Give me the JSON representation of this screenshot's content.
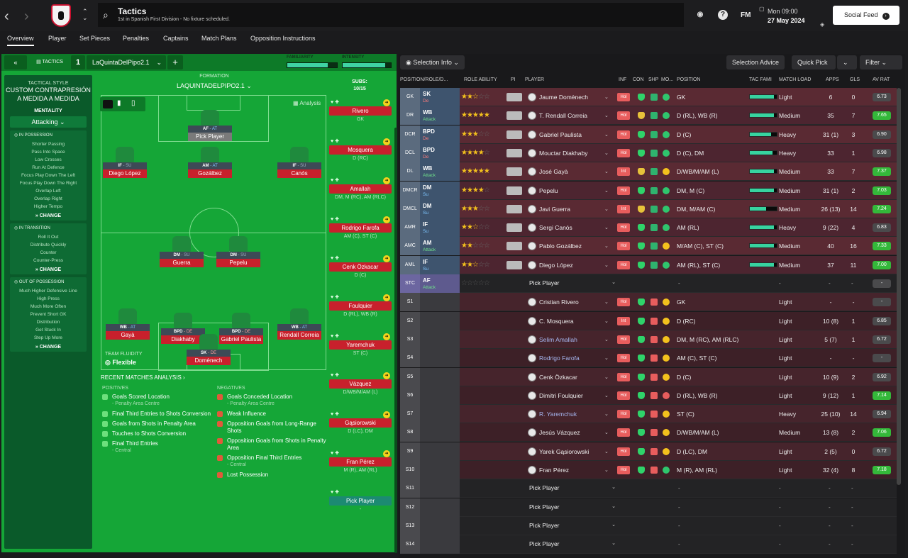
{
  "header": {
    "title": "Tactics",
    "subtitle": "1st in Spanish First Division - No fixture scheduled.",
    "fm_label": "FM",
    "day": "Mon 09:00",
    "date": "27 May 2024",
    "social_feed": "Social Feed"
  },
  "tabs": [
    "Overview",
    "Player",
    "Set Pieces",
    "Penalties",
    "Captains",
    "Match Plans",
    "Opposition Instructions"
  ],
  "left": {
    "tactics_label": "TACTICS",
    "slot": "1",
    "tactic_name": "LaQuintaDelPipo2.1",
    "familiarity": "FAMILIARITY",
    "intensity": "INTENSITY",
    "familiarity_pct": 0.82,
    "intensity_pct": 0.88,
    "style_head": "TACTICAL STYLE",
    "style": "CUSTOM CONTRAPRESIÓN A MEDIDA A MEDIDA",
    "mentality_head": "MENTALITY",
    "mentality": "Attacking",
    "in_possession": "IN POSSESSION",
    "in_possession_items": [
      "Shorter Passing",
      "Pass Into Space",
      "Low Crosses",
      "Run At Defence",
      "Focus Play Down The Left",
      "Focus Play Down The Right",
      "Overlap Left",
      "Overlap Right",
      "Higher Tempo"
    ],
    "in_transition": "IN TRANSITION",
    "in_transition_items": [
      "Roll It Out",
      "Distribute Quickly",
      "Counter",
      "Counter-Press"
    ],
    "out_possession": "OUT OF POSSESSION",
    "out_possession_items": [
      "Much Higher Defensive Line",
      "High Press",
      "Much More Often",
      "Prevent Short GK",
      "Distribution",
      "Get Stuck In",
      "Step Up More"
    ],
    "change": "CHANGE",
    "formation_head": "FORMATION",
    "formation": "LAQUINTADELPIPO2.1",
    "subs_head": "SUBS:",
    "subs_count": "10/15",
    "analysis": "Analysis",
    "team_fluidity_head": "TEAM FLUIDITY",
    "team_fluidity": "Flexible",
    "recent": "RECENT MATCHES ANALYSIS",
    "positives": "POSITIVES",
    "negatives": "NEGATIVES",
    "positive_items": [
      {
        "t": "Goals Scored Location",
        "s": "- Penalty Area Centre"
      },
      {
        "t": "Final Third Entries to Shots Conversion",
        "s": ""
      },
      {
        "t": "Goals from Shots in Penalty Area",
        "s": ""
      },
      {
        "t": "Touches to Shots Conversion",
        "s": ""
      },
      {
        "t": "Final Third Entries",
        "s": "- Central"
      }
    ],
    "negative_items": [
      {
        "t": "Goals Conceded Location",
        "s": "- Penalty Area Centre"
      },
      {
        "t": "Weak Influence",
        "s": ""
      },
      {
        "t": "Opposition Goals from Long-Range Shots",
        "s": ""
      },
      {
        "t": "Opposition Goals from Shots in Penalty Area",
        "s": ""
      },
      {
        "t": "Opposition Final Third Entries",
        "s": "- Central"
      },
      {
        "t": "Lost Possession",
        "s": ""
      }
    ],
    "pitch_players": [
      {
        "role": "AF",
        "duty": "AT",
        "name": "Pick Player"
      },
      {
        "role": "IF",
        "duty": "SU",
        "name": "Diego López"
      },
      {
        "role": "AM",
        "duty": "AT",
        "name": "Gozálbez"
      },
      {
        "role": "IF",
        "duty": "SU",
        "name": "Canós"
      },
      {
        "role": "DM",
        "duty": "SU",
        "name": "Guerra"
      },
      {
        "role": "DM",
        "duty": "SU",
        "name": "Pepelu"
      },
      {
        "role": "WB",
        "duty": "AT",
        "name": "Gayà"
      },
      {
        "role": "BPD",
        "duty": "DE",
        "name": "Diakhaby"
      },
      {
        "role": "BPD",
        "duty": "DE",
        "name": "Gabriel Paulista"
      },
      {
        "role": "WB",
        "duty": "AT",
        "name": "Rendall Correia"
      },
      {
        "role": "SK",
        "duty": "DE",
        "name": "Domènech"
      }
    ],
    "subs": [
      {
        "name": "Rivero",
        "pos": "GK"
      },
      {
        "name": "Mosquera",
        "pos": "D (RC)"
      },
      {
        "name": "Amallah",
        "pos": "DM, M (RC), AM (RLC)"
      },
      {
        "name": "Rodrigo Farofa",
        "pos": "AM (C), ST (C)"
      },
      {
        "name": "Cenk Özkacar",
        "pos": "D (C)"
      },
      {
        "name": "Foulquier",
        "pos": "D (RL), WB (R)"
      },
      {
        "name": "Yaremchuk",
        "pos": "ST (C)"
      },
      {
        "name": "Vázquez",
        "pos": "D/WB/M/AM (L)"
      },
      {
        "name": "Gąsiorowski",
        "pos": "D (LC), DM"
      },
      {
        "name": "Fran Pérez",
        "pos": "M (R), AM (RL)"
      },
      {
        "name": "Pick Player",
        "pos": "-"
      }
    ]
  },
  "right": {
    "selection_info": "Selection Info",
    "selection_advice": "Selection Advice",
    "quick_pick": "Quick Pick",
    "filter": "Filter",
    "columns": [
      "POSITION/ROLE/D...",
      "ROLE ABILITY",
      "PI",
      "PLAYER",
      "INF",
      "CON",
      "SHP",
      "MO...",
      "POSITION",
      "TAC FAMI",
      "MATCH LOAD",
      "APPS",
      "GLS",
      "AV RAT"
    ],
    "rows": [
      {
        "pos": "GK",
        "role": "SK",
        "duty": "De",
        "dc": "de",
        "stars": "★★☆",
        "empty": "☆☆",
        "player": "Jaume Domènech",
        "inf": "Hol",
        "con": "#2fd36a",
        "mo": "#2fc56d",
        "position": "GK",
        "tf": 0.9,
        "load": "Light",
        "apps": "6",
        "gls": "0",
        "rat": "6.73",
        "g": false
      },
      {
        "pos": "DR",
        "role": "WB",
        "duty": "Attack",
        "dc": "at",
        "stars": "★★★★★",
        "empty": "",
        "player": "T. Rendall Correia",
        "inf": "Hol",
        "con": "#e7c23a",
        "mo": "#2fc56d",
        "position": "D (RL), WB (R)",
        "tf": 0.9,
        "load": "Medium",
        "apps": "35",
        "gls": "7",
        "rat": "7.65",
        "g": true
      },
      {
        "pos": "DCR",
        "role": "BPD",
        "duty": "De",
        "dc": "de",
        "stars": "★★★",
        "empty": "☆☆",
        "player": "Gabriel Paulista",
        "inf": "Hol",
        "con": "#2fd36a",
        "mo": "#2fc56d",
        "position": "D (C)",
        "tf": 0.8,
        "load": "Heavy",
        "apps": "31 (1)",
        "gls": "3",
        "rat": "6.90",
        "g": false
      },
      {
        "pos": "DCL",
        "role": "BPD",
        "duty": "De",
        "dc": "de",
        "stars": "★★★★",
        "empty": "☆",
        "player": "Mouctar Diakhaby",
        "inf": "Hol",
        "con": "#2fd36a",
        "mo": "#2fc56d",
        "position": "D (C), DM",
        "tf": 0.85,
        "load": "Heavy",
        "apps": "33",
        "gls": "1",
        "rat": "6.98",
        "g": false
      },
      {
        "pos": "DL",
        "role": "WB",
        "duty": "Attack",
        "dc": "at",
        "stars": "★★★★★",
        "empty": "",
        "player": "José Gayà",
        "inf": "Int",
        "con": "#e7c23a",
        "mo": "#f3c11d",
        "position": "D/WB/M/AM (L)",
        "tf": 0.9,
        "load": "Medium",
        "apps": "33",
        "gls": "7",
        "rat": "7.37",
        "g": true
      },
      {
        "pos": "DMCR",
        "role": "DM",
        "duty": "Su",
        "dc": "su",
        "stars": "★★★★",
        "empty": "☆",
        "player": "Pepelu",
        "inf": "Hol",
        "con": "#2fd36a",
        "mo": "#2fc56d",
        "position": "DM, M (C)",
        "tf": 0.9,
        "load": "Medium",
        "apps": "31 (1)",
        "gls": "2",
        "rat": "7.03",
        "g": true
      },
      {
        "pos": "DMCL",
        "role": "DM",
        "duty": "Su",
        "dc": "su",
        "stars": "★★★",
        "empty": "☆☆",
        "player": "Javi Guerra",
        "inf": "Int",
        "con": "#e7c23a",
        "mo": "#2fc56d",
        "position": "DM, M/AM (C)",
        "tf": 0.6,
        "load": "Medium",
        "apps": "26 (13)",
        "gls": "14",
        "rat": "7.24",
        "g": true
      },
      {
        "pos": "AMR",
        "role": "IF",
        "duty": "Su",
        "dc": "su",
        "stars": "★★☆",
        "empty": "☆☆",
        "player": "Sergi Canós",
        "inf": "Hol",
        "con": "#2fd36a",
        "mo": "#2fc56d",
        "position": "AM (RL)",
        "tf": 0.9,
        "load": "Heavy",
        "apps": "9 (22)",
        "gls": "4",
        "rat": "6.83",
        "g": false
      },
      {
        "pos": "AMC",
        "role": "AM",
        "duty": "Attack",
        "dc": "at",
        "stars": "★★",
        "empty": "☆☆☆",
        "player": "Pablo Gozálbez",
        "inf": "Hol",
        "con": "#2fd36a",
        "mo": "#f3c11d",
        "position": "M/AM (C), ST (C)",
        "tf": 0.9,
        "load": "Medium",
        "apps": "40",
        "gls": "16",
        "rat": "7.33",
        "g": true
      },
      {
        "pos": "AML",
        "role": "IF",
        "duty": "Su",
        "dc": "su",
        "stars": "★★☆",
        "empty": "☆☆",
        "player": "Diego López",
        "inf": "Hol",
        "con": "#2fd36a",
        "mo": "#2fc56d",
        "position": "AM (RL), ST (C)",
        "tf": 0.9,
        "load": "Medium",
        "apps": "37",
        "gls": "11",
        "rat": "7.00",
        "g": true
      }
    ],
    "stc": {
      "pos": "STC",
      "role": "AF",
      "duty": "Attack",
      "pick": "Pick Player"
    },
    "subs": [
      {
        "pos": "S1",
        "player": "Cristian Rivero",
        "inf": "Hol",
        "con": "#2fd36a",
        "mo": "#f3c11d",
        "position": "GK",
        "load": "Light",
        "apps": "-",
        "gls": "-",
        "rat": "-",
        "g": false,
        "lnk": false
      },
      {
        "pos": "S2",
        "player": "C. Mosquera",
        "inf": "Int",
        "con": "#2fd36a",
        "mo": "#f3c11d",
        "position": "D (RC)",
        "load": "Light",
        "apps": "10 (8)",
        "gls": "1",
        "rat": "6.85",
        "g": false,
        "lnk": false
      },
      {
        "pos": "S3",
        "player": "Selim Amallah",
        "inf": "Hol",
        "con": "#2fd36a",
        "mo": "#f3c11d",
        "position": "DM, M (RC), AM (RLC)",
        "load": "Light",
        "apps": "5 (7)",
        "gls": "1",
        "rat": "6.72",
        "g": false,
        "lnk": true
      },
      {
        "pos": "S4",
        "player": "Rodrigo Farofa",
        "inf": "Hol",
        "con": "#2fd36a",
        "mo": "#f3c11d",
        "position": "AM (C), ST (C)",
        "load": "Light",
        "apps": "-",
        "gls": "-",
        "rat": "-",
        "g": false,
        "lnk": true
      },
      {
        "pos": "S5",
        "player": "Cenk Özkacar",
        "inf": "Hol",
        "con": "#2fd36a",
        "mo": "#f3c11d",
        "position": "D (C)",
        "load": "Light",
        "apps": "10 (9)",
        "gls": "2",
        "rat": "6.92",
        "g": false,
        "lnk": false
      },
      {
        "pos": "S6",
        "player": "Dimitri Foulquier",
        "inf": "Hol",
        "con": "#2fd36a",
        "mo": "#e85d5d",
        "position": "D (RL), WB (R)",
        "load": "Light",
        "apps": "9 (12)",
        "gls": "1",
        "rat": "7.14",
        "g": true,
        "lnk": false
      },
      {
        "pos": "S7",
        "player": "R. Yaremchuk",
        "inf": "Hol",
        "con": "#2fd36a",
        "mo": "#f3c11d",
        "position": "ST (C)",
        "load": "Heavy",
        "apps": "25 (10)",
        "gls": "14",
        "rat": "6.94",
        "g": false,
        "lnk": true
      },
      {
        "pos": "S8",
        "player": "Jesús Vázquez",
        "inf": "Hol",
        "con": "#2fd36a",
        "mo": "#f3c11d",
        "position": "D/WB/M/AM (L)",
        "load": "Medium",
        "apps": "13 (8)",
        "gls": "2",
        "rat": "7.06",
        "g": true,
        "lnk": false
      },
      {
        "pos": "S9",
        "player": "Yarek Gąsiorowski",
        "inf": "Hol",
        "con": "#2fd36a",
        "mo": "#f3c11d",
        "position": "D (LC), DM",
        "load": "Light",
        "apps": "2 (5)",
        "gls": "0",
        "rat": "6.72",
        "g": false,
        "lnk": false
      },
      {
        "pos": "S10",
        "player": "Fran Pérez",
        "inf": "Hol",
        "con": "#2fd36a",
        "mo": "#2fc56d",
        "position": "M (R), AM (RL)",
        "load": "Light",
        "apps": "32 (4)",
        "gls": "8",
        "rat": "7.18",
        "g": true,
        "lnk": false
      }
    ],
    "empty_slots": [
      "S11",
      "S12",
      "S13",
      "S14"
    ],
    "pick_player": "Pick Player",
    "dash": "-"
  }
}
